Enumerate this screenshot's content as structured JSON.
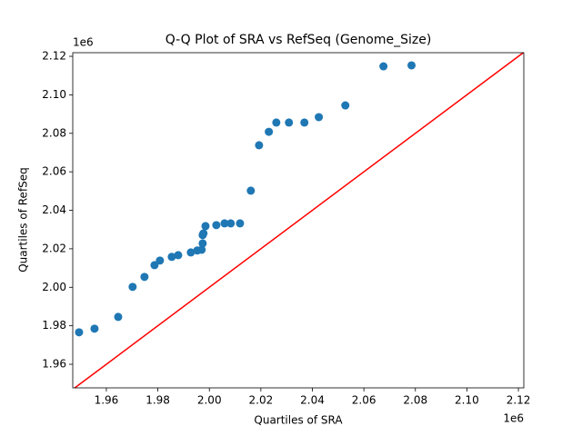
{
  "chart_data": {
    "type": "scatter",
    "title": "Q-Q Plot of SRA vs RefSeq (Genome_Size)",
    "x_label": "Quartiles of SRA",
    "y_label": "Quartiles of RefSeq",
    "x_offset_label": "1e6",
    "y_offset_label": "1e6",
    "color": "#1f77b4",
    "reference_line_color": "#ff0000",
    "x": [
      1949400,
      1955400,
      1964600,
      1970200,
      1974800,
      1978700,
      1980800,
      1985400,
      1987900,
      1992800,
      1995300,
      1997000,
      1997400,
      1997400,
      1997700,
      1998500,
      2002700,
      2005900,
      2008300,
      2011900,
      2016100,
      2019300,
      2023100,
      2026000,
      2030900,
      2036900,
      2042500,
      2052800,
      2067600,
      2078500
    ],
    "values": [
      1976600,
      1978500,
      1984600,
      2000200,
      2005400,
      2011500,
      2013900,
      2015800,
      2016700,
      2018100,
      2019100,
      2019500,
      2022800,
      2027100,
      2028000,
      2031800,
      2032300,
      2033200,
      2033200,
      2033200,
      2050200,
      2073800,
      2080800,
      2085600,
      2085600,
      2085600,
      2088400,
      2094500,
      2114800,
      2115300
    ],
    "xlim": [
      1946950,
      2122100
    ],
    "ylim": [
      1947740,
      2121900
    ],
    "xticks": [
      {
        "value": 1960000,
        "label": "1.96"
      },
      {
        "value": 1980000,
        "label": "1.98"
      },
      {
        "value": 2000000,
        "label": "2.00"
      },
      {
        "value": 2020000,
        "label": "2.02"
      },
      {
        "value": 2040000,
        "label": "2.04"
      },
      {
        "value": 2060000,
        "label": "2.06"
      },
      {
        "value": 2080000,
        "label": "2.08"
      },
      {
        "value": 2100000,
        "label": "2.10"
      },
      {
        "value": 2120000,
        "label": "2.12"
      }
    ],
    "yticks": [
      {
        "value": 1960000,
        "label": "1.96"
      },
      {
        "value": 1980000,
        "label": "1.98"
      },
      {
        "value": 2000000,
        "label": "2.00"
      },
      {
        "value": 2020000,
        "label": "2.02"
      },
      {
        "value": 2040000,
        "label": "2.04"
      },
      {
        "value": 2060000,
        "label": "2.06"
      },
      {
        "value": 2080000,
        "label": "2.08"
      },
      {
        "value": 2100000,
        "label": "2.10"
      },
      {
        "value": 2120000,
        "label": "2.12"
      }
    ]
  }
}
